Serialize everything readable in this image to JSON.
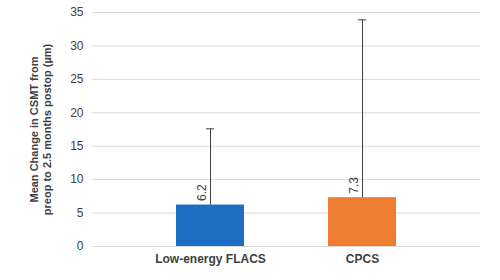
{
  "chart_data": {
    "type": "bar",
    "y_label": "Mean Change in CSMT from preop to 2.5 months postop (µm)",
    "categories": [
      "Low-energy FLACS",
      "CPCS"
    ],
    "values": [
      6.2,
      7.3
    ],
    "errors": [
      11.4,
      26.6
    ],
    "colors": [
      "#1b6ec2",
      "#ed7d31"
    ],
    "ylim": [
      0,
      35
    ],
    "yticks": [
      0,
      5,
      10,
      15,
      20,
      25,
      30,
      35
    ],
    "grid": true,
    "data_labels": true
  }
}
